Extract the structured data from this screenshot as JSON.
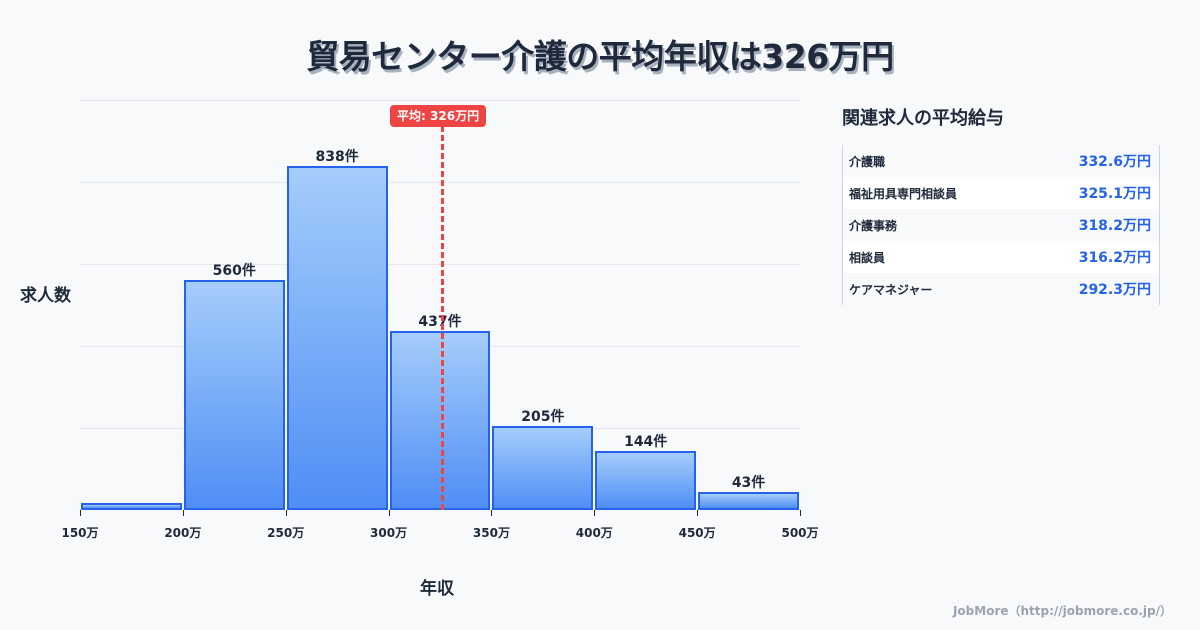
{
  "title": "貿易センター介護の平均年収は326万円",
  "chart_data": {
    "type": "bar",
    "title": "貿易センター介護の平均年収は326万円",
    "xlabel": "年収",
    "ylabel": "求人数",
    "categories": [
      "150万-200万",
      "200万-250万",
      "250万-300万",
      "300万-350万",
      "350万-400万",
      "400万-450万",
      "450万-500万"
    ],
    "x_ticks": [
      "150万",
      "200万",
      "250万",
      "300万",
      "350万",
      "400万",
      "450万",
      "500万"
    ],
    "values": [
      17,
      560,
      838,
      437,
      205,
      144,
      43
    ],
    "value_labels": [
      "",
      "560件",
      "838件",
      "437件",
      "205件",
      "144件",
      "43件"
    ],
    "ylim": [
      0,
      1000
    ],
    "grid": true,
    "mean": {
      "value": 326,
      "label": "平均: 326万円"
    }
  },
  "ylabel": "求人数",
  "xlabel": "年収",
  "related": {
    "title": "関連求人の平均給与",
    "rows": [
      {
        "name": "介護職",
        "value": "332.6万円"
      },
      {
        "name": "福祉用具専門相談員",
        "value": "325.1万円"
      },
      {
        "name": "介護事務",
        "value": "318.2万円"
      },
      {
        "name": "相談員",
        "value": "316.2万円"
      },
      {
        "name": "ケアマネジャー",
        "value": "292.3万円"
      }
    ]
  },
  "credit": "JobMore（http://jobmore.co.jp/）",
  "colors": {
    "bar": "#4f8ef5",
    "bar_border": "#2563eb",
    "mean": "#ef4444",
    "value_text": "#2563eb"
  }
}
